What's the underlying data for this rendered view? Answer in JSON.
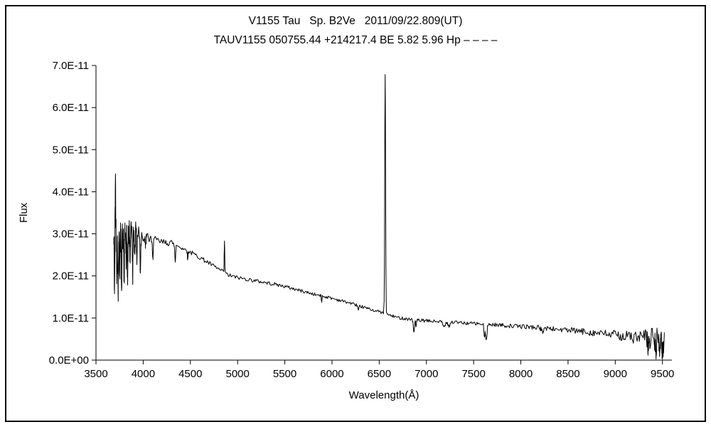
{
  "frame": {
    "border_color": "#000000",
    "background": "#ffffff"
  },
  "chart_data": {
    "type": "line",
    "title": "V1155 Tau   Sp. B2Ve   2011/09/22.809(UT)",
    "subtitle": "TAUV1155 050755.44 +214217.4 BE 5.82 5.96 Hp – – – –",
    "xlabel": "Wavelength(Å)",
    "ylabel": "Flux",
    "line_color": "#000000",
    "grid": false,
    "legend_position": "none",
    "xlim": [
      3500,
      9600
    ],
    "ylim": [
      0,
      7
    ],
    "y_unit_exponent": "E-11",
    "x_ticks": [
      3500,
      4000,
      4500,
      5000,
      5500,
      6000,
      6500,
      7000,
      7500,
      8000,
      8500,
      9000,
      9500
    ],
    "y_ticks": [
      0,
      1,
      2,
      3,
      4,
      5,
      6,
      7
    ],
    "y_tick_labels": [
      "0.0E+00",
      "1.0E-11",
      "2.0E-11",
      "3.0E-11",
      "4.0E-11",
      "5.0E-11",
      "6.0E-11",
      "7.0E-11"
    ],
    "series": [
      {
        "name": "V1155 Tau flux spectrum",
        "x_range": [
          3688,
          9520
        ],
        "sample_step_angstrom": 8,
        "continuum_flux_1e11": [
          [
            3688,
            2.85
          ],
          [
            3800,
            3.0
          ],
          [
            3900,
            3.05
          ],
          [
            4000,
            2.95
          ],
          [
            4100,
            2.86
          ],
          [
            4200,
            2.8
          ],
          [
            4300,
            2.78
          ],
          [
            4400,
            2.68
          ],
          [
            4500,
            2.56
          ],
          [
            4600,
            2.44
          ],
          [
            4700,
            2.3
          ],
          [
            4800,
            2.16
          ],
          [
            4900,
            2.02
          ],
          [
            5000,
            1.96
          ],
          [
            5100,
            1.92
          ],
          [
            5200,
            1.88
          ],
          [
            5300,
            1.84
          ],
          [
            5400,
            1.8
          ],
          [
            5500,
            1.75
          ],
          [
            5600,
            1.69
          ],
          [
            5700,
            1.63
          ],
          [
            5800,
            1.57
          ],
          [
            5900,
            1.52
          ],
          [
            6000,
            1.47
          ],
          [
            6100,
            1.41
          ],
          [
            6200,
            1.35
          ],
          [
            6300,
            1.28
          ],
          [
            6400,
            1.21
          ],
          [
            6500,
            1.15
          ],
          [
            6600,
            1.07
          ],
          [
            6700,
            1.01
          ],
          [
            6800,
            0.98
          ],
          [
            6900,
            0.95
          ],
          [
            7000,
            0.93
          ],
          [
            7100,
            0.92
          ],
          [
            7200,
            0.91
          ],
          [
            7300,
            0.9
          ],
          [
            7400,
            0.88
          ],
          [
            7500,
            0.87
          ],
          [
            7600,
            0.855
          ],
          [
            7700,
            0.845
          ],
          [
            7800,
            0.83
          ],
          [
            7900,
            0.81
          ],
          [
            8000,
            0.8
          ],
          [
            8100,
            0.79
          ],
          [
            8200,
            0.77
          ],
          [
            8300,
            0.75
          ],
          [
            8400,
            0.73
          ],
          [
            8500,
            0.71
          ],
          [
            8600,
            0.69
          ],
          [
            8700,
            0.67
          ],
          [
            8800,
            0.645
          ],
          [
            8900,
            0.62
          ],
          [
            9000,
            0.6
          ],
          [
            9100,
            0.57
          ],
          [
            9200,
            0.54
          ],
          [
            9300,
            0.52
          ],
          [
            9400,
            0.5
          ],
          [
            9520,
            0.46
          ]
        ],
        "noise_amplitude_1e11": [
          [
            3688,
            0.42
          ],
          [
            3780,
            0.4
          ],
          [
            3880,
            0.32
          ],
          [
            3960,
            0.2
          ],
          [
            4050,
            0.12
          ],
          [
            4200,
            0.08
          ],
          [
            4400,
            0.06
          ],
          [
            4700,
            0.05
          ],
          [
            5000,
            0.045
          ],
          [
            5500,
            0.04
          ],
          [
            6000,
            0.035
          ],
          [
            6500,
            0.035
          ],
          [
            6900,
            0.04
          ],
          [
            7400,
            0.04
          ],
          [
            7900,
            0.05
          ],
          [
            8300,
            0.06
          ],
          [
            8600,
            0.075
          ],
          [
            8900,
            0.095
          ],
          [
            9100,
            0.13
          ],
          [
            9250,
            0.18
          ],
          [
            9400,
            0.28
          ],
          [
            9520,
            0.34
          ]
        ],
        "features": [
          {
            "name": "blue absorption line",
            "center": 3696,
            "amplitude_1e11": -1.1,
            "sigma": 3
          },
          {
            "name": "blue emission spike",
            "center": 3706,
            "amplitude_1e11": 1.4,
            "sigma": 3
          },
          {
            "name": "blue absorption line",
            "center": 3722,
            "amplitude_1e11": -0.9,
            "sigma": 3
          },
          {
            "name": "blue absorption line",
            "center": 3736,
            "amplitude_1e11": -1.15,
            "sigma": 3.5
          },
          {
            "name": "blue absorption line",
            "center": 3752,
            "amplitude_1e11": -0.8,
            "sigma": 3
          },
          {
            "name": "blue absorption line",
            "center": 3771,
            "amplitude_1e11": -1.0,
            "sigma": 3.5
          },
          {
            "name": "blue absorption line",
            "center": 3798,
            "amplitude_1e11": -1.05,
            "sigma": 3.5
          },
          {
            "name": "blue absorption line",
            "center": 3820,
            "amplitude_1e11": -0.7,
            "sigma": 3
          },
          {
            "name": "blue absorption line",
            "center": 3835,
            "amplitude_1e11": -1.1,
            "sigma": 3.5
          },
          {
            "name": "blue absorption line",
            "center": 3860,
            "amplitude_1e11": -0.6,
            "sigma": 3
          },
          {
            "name": "blue absorption line",
            "center": 3889,
            "amplitude_1e11": -0.95,
            "sigma": 3.5
          },
          {
            "name": "blue absorption line",
            "center": 3910,
            "amplitude_1e11": -0.5,
            "sigma": 3
          },
          {
            "name": "blue absorption line",
            "center": 3933,
            "amplitude_1e11": -0.65,
            "sigma": 3
          },
          {
            "name": "blue absorption line",
            "center": 3970,
            "amplitude_1e11": -0.85,
            "sigma": 4
          },
          {
            "name": "absorption line",
            "center": 4026,
            "amplitude_1e11": -0.3,
            "sigma": 3
          },
          {
            "name": "absorption line",
            "center": 4101,
            "amplitude_1e11": -0.5,
            "sigma": 4
          },
          {
            "name": "absorption line",
            "center": 4340,
            "amplitude_1e11": -0.42,
            "sigma": 4
          },
          {
            "name": "absorption line",
            "center": 4471,
            "amplitude_1e11": -0.2,
            "sigma": 3
          },
          {
            "name": "emission spike (4861)",
            "center": 4861,
            "amplitude_1e11": 0.72,
            "sigma": 3
          },
          {
            "name": "absorption line",
            "center": 5890,
            "amplitude_1e11": -0.15,
            "sigma": 3
          },
          {
            "name": "shallow absorption",
            "center": 6280,
            "amplitude_1e11": -0.12,
            "sigma": 6
          },
          {
            "name": "strong emission spike (6563)",
            "center": 6563,
            "amplitude_1e11": 5.7,
            "sigma": 4.5
          },
          {
            "name": "absorption band",
            "center": 6867,
            "amplitude_1e11": -0.3,
            "sigma": 6
          },
          {
            "name": "absorption band",
            "center": 6890,
            "amplitude_1e11": -0.15,
            "sigma": 5
          },
          {
            "name": "shallow absorption band",
            "center": 7185,
            "amplitude_1e11": -0.12,
            "sigma": 12
          },
          {
            "name": "shallow absorption band",
            "center": 7240,
            "amplitude_1e11": -0.1,
            "sigma": 10
          },
          {
            "name": "deep absorption band",
            "center": 7615,
            "amplitude_1e11": -0.3,
            "sigma": 6
          },
          {
            "name": "deep absorption band",
            "center": 7635,
            "amplitude_1e11": -0.38,
            "sigma": 7
          },
          {
            "name": "shallow absorption",
            "center": 8228,
            "amplitude_1e11": -0.1,
            "sigma": 10
          },
          {
            "name": "red-end noise dip",
            "center": 9350,
            "amplitude_1e11": -0.25,
            "sigma": 5
          },
          {
            "name": "red-end noise dip",
            "center": 9430,
            "amplitude_1e11": -0.35,
            "sigma": 5
          },
          {
            "name": "red-end noise dip",
            "center": 9470,
            "amplitude_1e11": -0.3,
            "sigma": 4
          },
          {
            "name": "red-end noise dip",
            "center": 9500,
            "amplitude_1e11": -0.35,
            "sigma": 4
          }
        ]
      }
    ]
  }
}
